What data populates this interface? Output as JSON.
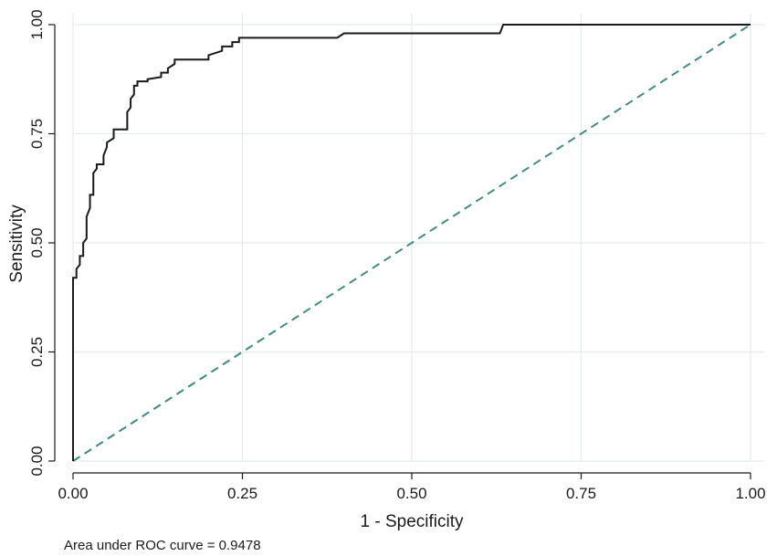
{
  "chart_data": {
    "type": "line",
    "title": "",
    "xlabel": "1 - Specificity",
    "ylabel": "Sensitivity",
    "xlim": [
      0,
      1
    ],
    "ylim": [
      0,
      1
    ],
    "grid": true,
    "x_ticks": [
      0,
      0.25,
      0.5,
      0.75,
      1
    ],
    "y_ticks": [
      0,
      0.25,
      0.5,
      0.75,
      1
    ],
    "x_tick_labels": [
      "0.00",
      "0.25",
      "0.50",
      "0.75",
      "1.00"
    ],
    "y_tick_labels": [
      "0.00",
      "0.25",
      "0.50",
      "0.75",
      "1.00"
    ],
    "series": [
      {
        "style": "solid",
        "color": "#1a1a1a",
        "x": [
          0,
          0,
          0.005,
          0.005,
          0.01,
          0.01,
          0.015,
          0.015,
          0.02,
          0.02,
          0.025,
          0.025,
          0.03,
          0.03,
          0.035,
          0.035,
          0.045,
          0.045,
          0.05,
          0.05,
          0.06,
          0.06,
          0.065,
          0.065,
          0.08,
          0.08,
          0.085,
          0.085,
          0.09,
          0.09,
          0.095,
          0.095,
          0.11,
          0.11,
          0.13,
          0.13,
          0.14,
          0.14,
          0.15,
          0.15,
          0.2,
          0.2,
          0.22,
          0.22,
          0.235,
          0.235,
          0.245,
          0.245,
          0.39,
          0.4,
          0.63,
          0.635,
          1.0
        ],
        "y": [
          0,
          0.42,
          0.42,
          0.44,
          0.45,
          0.47,
          0.47,
          0.5,
          0.51,
          0.56,
          0.58,
          0.61,
          0.61,
          0.66,
          0.67,
          0.68,
          0.68,
          0.7,
          0.72,
          0.73,
          0.74,
          0.76,
          0.76,
          0.76,
          0.76,
          0.8,
          0.81,
          0.83,
          0.84,
          0.86,
          0.86,
          0.87,
          0.87,
          0.875,
          0.88,
          0.89,
          0.89,
          0.9,
          0.91,
          0.92,
          0.92,
          0.93,
          0.94,
          0.95,
          0.95,
          0.96,
          0.96,
          0.97,
          0.97,
          0.98,
          0.98,
          1.0,
          1.0
        ]
      },
      {
        "style": "dashed",
        "color": "#3d8c7e",
        "x": [
          0,
          1
        ],
        "y": [
          0,
          1
        ]
      }
    ],
    "annotation": "Area under ROC curve = 0.9478"
  }
}
